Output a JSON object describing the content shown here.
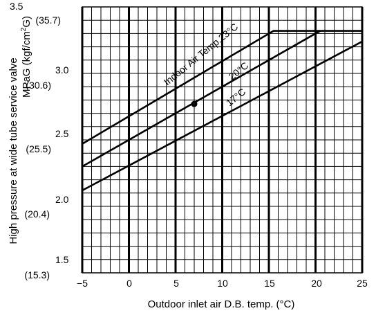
{
  "chart_data": {
    "type": "line",
    "title": "",
    "xlabel": "Outdoor inlet air D.B. temp. (°C)",
    "ylabel_line1": "High pressure at wide tube service valve",
    "ylabel_line2_prefix": "MPaG (kgf/cm",
    "ylabel_line2_sup": "2",
    "ylabel_line2_suffix": "G)",
    "xlim": [
      -5,
      25
    ],
    "ylim": [
      1.5,
      3.5
    ],
    "x_ticks": [
      "−5",
      "0",
      "5",
      "10",
      "15",
      "20",
      "25"
    ],
    "y_ticks": [
      {
        "value": 3.5,
        "mpa": "3.5",
        "kgf": "(35.7)"
      },
      {
        "value": 3.0,
        "mpa": "3.0",
        "kgf": "(30.6)"
      },
      {
        "value": 2.5,
        "mpa": "2.5",
        "kgf": "(25.5)"
      },
      {
        "value": 2.0,
        "mpa": "2.0",
        "kgf": "(20.4)"
      },
      {
        "value": 1.5,
        "mpa": "1.5",
        "kgf": "(15.3)"
      }
    ],
    "grid": true,
    "series": [
      {
        "name": "Indoor Air Temp.23°C",
        "x": [
          -5,
          15.5,
          25
        ],
        "y": [
          2.47,
          3.32,
          3.32
        ]
      },
      {
        "name": "20°C",
        "x": [
          -5,
          20.5
        ],
        "y": [
          2.3,
          3.32
        ]
      },
      {
        "name": "17°C",
        "x": [
          -5,
          25
        ],
        "y": [
          2.12,
          3.24
        ]
      }
    ],
    "marker_point": {
      "x": 7,
      "y": 2.77
    }
  }
}
